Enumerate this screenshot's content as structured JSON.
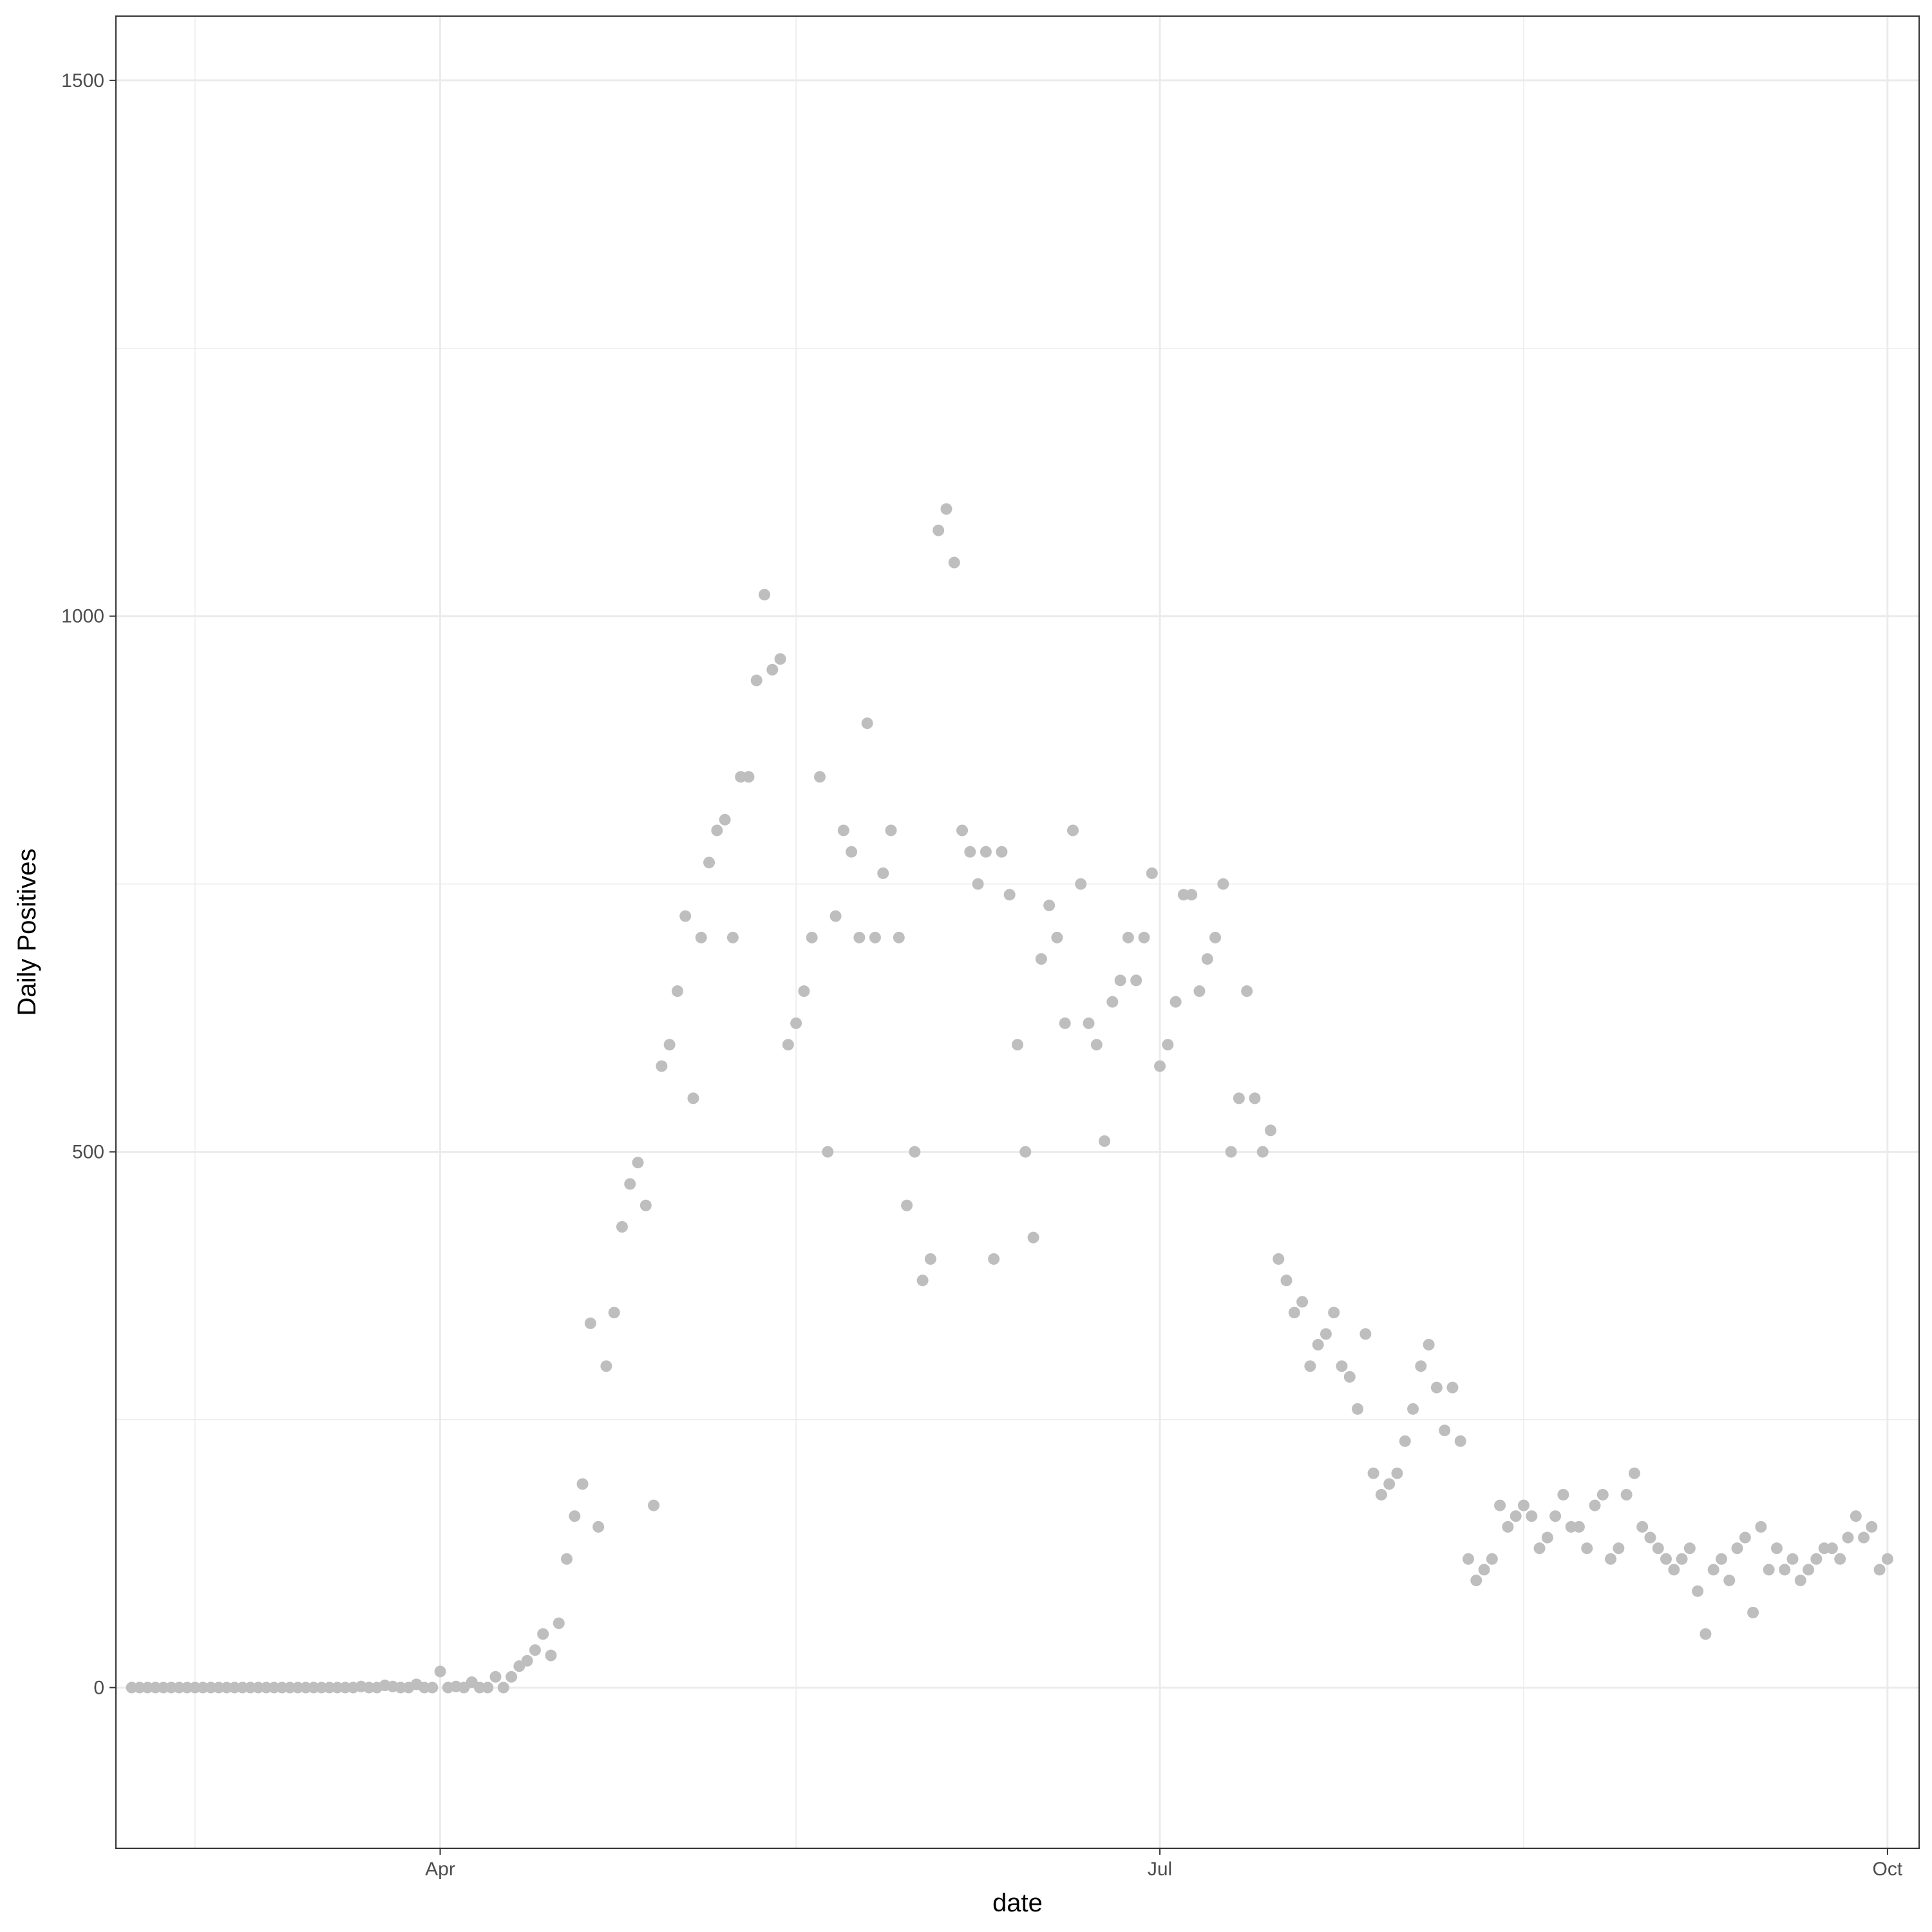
{
  "chart_data": {
    "type": "scatter",
    "title": "",
    "xlabel": "date",
    "ylabel": "Daily Positives",
    "x_range": [
      "2020-02-20",
      "2020-10-05"
    ],
    "ylim": [
      -150,
      1560
    ],
    "y_ticks": [
      0,
      500,
      1000,
      1500
    ],
    "x_ticks": [
      {
        "date": "2020-04-01",
        "label": "Apr"
      },
      {
        "date": "2020-07-01",
        "label": "Jul"
      },
      {
        "date": "2020-10-01",
        "label": "Oct"
      }
    ],
    "x_minor_ticks": [
      "2020-03-01",
      "2020-05-16",
      "2020-08-16"
    ],
    "y_minor_ticks": [
      250,
      750,
      1250
    ],
    "grid": true,
    "colors": {
      "observed": "#bebebe",
      "future_observed": "#ee0000",
      "fitted_line": "#000000",
      "ribbon": "#ebebeb",
      "grid": "#ebebeb",
      "panel_border": "#333333"
    },
    "series": [
      {
        "type": "scatter",
        "start_date": "2020-02-22",
        "values": [
          0,
          0,
          0,
          0,
          0,
          0,
          0,
          0,
          0,
          0,
          0,
          0,
          0,
          0,
          0,
          0,
          0,
          0,
          0,
          0,
          0,
          0,
          0,
          0,
          0,
          0,
          0,
          0,
          0,
          1,
          0,
          0,
          2,
          1,
          0,
          0,
          3,
          0,
          0,
          15,
          0,
          1,
          0,
          5,
          0,
          0,
          10,
          0,
          10,
          20,
          25,
          35,
          50,
          30,
          60,
          120,
          160,
          190,
          340,
          150,
          300,
          350,
          430,
          470,
          490,
          450,
          170,
          580,
          600,
          650,
          720,
          550,
          700,
          770,
          800,
          810,
          700,
          850,
          850,
          940,
          1020,
          950,
          960,
          600,
          620,
          650,
          700,
          850,
          500,
          720,
          800,
          780,
          700,
          900,
          700,
          760,
          800,
          700,
          450,
          500,
          380,
          400,
          1080,
          1100,
          1050,
          800,
          780,
          750,
          780,
          400,
          780,
          740,
          600,
          500,
          420,
          680,
          730,
          700,
          620,
          800,
          750,
          620,
          600,
          510,
          640,
          660,
          700,
          660,
          700,
          760,
          580,
          600,
          640,
          740,
          740,
          650,
          680,
          700,
          750,
          500,
          550,
          650,
          550,
          500,
          520,
          400,
          380,
          350,
          360,
          300,
          320,
          330,
          350,
          300,
          290,
          260,
          330,
          200,
          180,
          190,
          200,
          230,
          260,
          300,
          320,
          280,
          240,
          280,
          230,
          120,
          100,
          110,
          120,
          170,
          150,
          160,
          170,
          160,
          130,
          140,
          160,
          180,
          150,
          150,
          130,
          170,
          180,
          120,
          130,
          180,
          200,
          150,
          140,
          130,
          120,
          110,
          120,
          130,
          90,
          50,
          110,
          120,
          100,
          130,
          140,
          70,
          150,
          110,
          130,
          110,
          120,
          100,
          110,
          120,
          130,
          130,
          120,
          140,
          160,
          140,
          150,
          110,
          120
        ],
        "note_values": "approximate, read off chart"
      }
    ]
  }
}
